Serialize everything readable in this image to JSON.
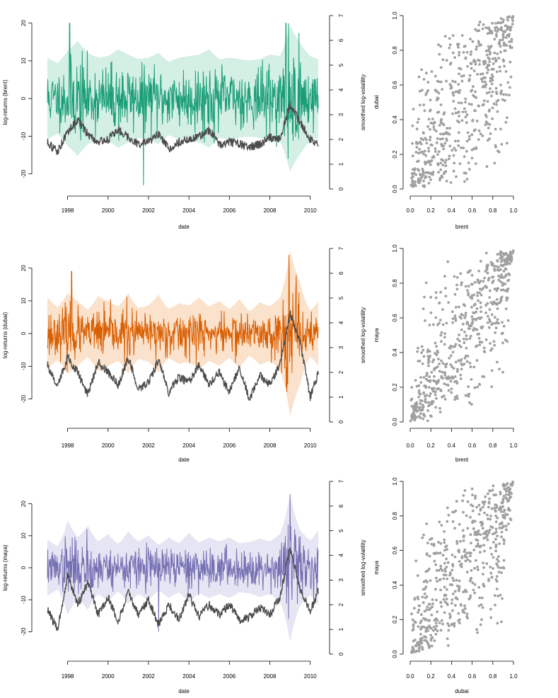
{
  "colors": {
    "brent": "#1b9e77",
    "brent_band": "#d4efe4",
    "dubai": "#d95f02",
    "dubai_band": "#fbe2cc",
    "maya": "#7570b3",
    "maya_band": "#e6e5f3",
    "volatility": "#4a4a4a",
    "scatter": "#a0a0a0"
  },
  "chart_data": [
    {
      "type": "line",
      "xlabel": "date",
      "ylabel": "log-returns (brent)",
      "y2label": "smoothed log-volatility",
      "x_ticks": [
        "1998",
        "2000",
        "2002",
        "2004",
        "2006",
        "2008",
        "2010"
      ],
      "y_ticks": [
        "-20",
        "-10",
        "0",
        "10",
        "20"
      ],
      "y2_ticks": [
        "0",
        "1",
        "2",
        "3",
        "4",
        "5",
        "6",
        "7"
      ],
      "ylim": [
        -24,
        22
      ],
      "y2lim": [
        0,
        7
      ],
      "xlim": [
        1997.0,
        2010.5
      ],
      "returns_series": {
        "name": "log-returns (brent)",
        "color_key": "brent",
        "band_key": "brent_band",
        "amplitude": 4.2,
        "seed": 11
      },
      "volatility_series": {
        "name": "smoothed log-volatility",
        "x": [
          1997.0,
          1997.5,
          1998.0,
          1998.5,
          1999.0,
          1999.5,
          2000.0,
          2000.5,
          2001.0,
          2001.5,
          2002.0,
          2002.5,
          2003.0,
          2003.5,
          2004.0,
          2004.5,
          2005.0,
          2005.5,
          2006.0,
          2006.5,
          2007.0,
          2007.5,
          2008.0,
          2008.5,
          2009.0,
          2009.5,
          2010.0,
          2010.4
        ],
        "values": [
          1.9,
          1.5,
          2.3,
          2.8,
          2.2,
          1.9,
          2.0,
          2.4,
          2.1,
          1.8,
          1.9,
          2.2,
          1.6,
          1.9,
          2.0,
          2.1,
          2.4,
          1.8,
          1.9,
          1.8,
          1.7,
          1.8,
          2.1,
          2.0,
          3.4,
          2.7,
          2.0,
          1.8
        ]
      },
      "spikes": [
        {
          "x": 1998.1,
          "y": 20
        },
        {
          "x": 2001.75,
          "y": -23
        },
        {
          "x": 2008.8,
          "y": 20
        },
        {
          "x": 2008.9,
          "y": -16
        }
      ]
    },
    {
      "type": "line",
      "xlabel": "date",
      "ylabel": "log-returns (dubai)",
      "y2label": "smoothed log-volatility",
      "x_ticks": [
        "1998",
        "2000",
        "2002",
        "2004",
        "2006",
        "2008",
        "2010"
      ],
      "y_ticks": [
        "-20",
        "-10",
        "0",
        "10",
        "20"
      ],
      "y2_ticks": [
        "0",
        "1",
        "2",
        "3",
        "4",
        "5",
        "6",
        "7"
      ],
      "ylim": [
        -27,
        26
      ],
      "y2lim": [
        0,
        7
      ],
      "xlim": [
        1997.0,
        2010.5
      ],
      "returns_series": {
        "name": "log-returns (dubai)",
        "color_key": "dubai",
        "band_key": "dubai_band",
        "amplitude": 3.6,
        "seed": 23
      },
      "volatility_series": {
        "name": "smoothed log-volatility",
        "x": [
          1997.0,
          1997.5,
          1998.0,
          1998.5,
          1999.0,
          1999.5,
          2000.0,
          2000.5,
          2001.0,
          2001.5,
          2002.0,
          2002.5,
          2003.0,
          2003.5,
          2004.0,
          2004.5,
          2005.0,
          2005.5,
          2006.0,
          2006.5,
          2007.0,
          2007.5,
          2008.0,
          2008.5,
          2009.0,
          2009.5,
          2010.0,
          2010.4
        ],
        "values": [
          2.3,
          1.4,
          2.6,
          2.0,
          1.1,
          2.4,
          2.0,
          1.5,
          2.6,
          1.3,
          1.6,
          2.5,
          1.2,
          1.8,
          1.6,
          2.3,
          1.5,
          2.0,
          1.2,
          2.2,
          0.9,
          1.9,
          1.5,
          2.3,
          4.4,
          3.2,
          1.0,
          2.0
        ]
      },
      "spikes": [
        {
          "x": 1998.2,
          "y": 19
        },
        {
          "x": 2008.95,
          "y": 24
        },
        {
          "x": 2009.1,
          "y": -12
        }
      ]
    },
    {
      "type": "line",
      "xlabel": "date",
      "ylabel": "log-returns (maya)",
      "y2label": "smoothed log-volatility",
      "x_ticks": [
        "1998",
        "2000",
        "2002",
        "2004",
        "2006",
        "2008",
        "2010"
      ],
      "y_ticks": [
        "-20",
        "-10",
        "0",
        "10",
        "20"
      ],
      "y2_ticks": [
        "0",
        "1",
        "2",
        "3",
        "4",
        "5",
        "6",
        "7"
      ],
      "ylim": [
        -27,
        27
      ],
      "y2lim": [
        0,
        7
      ],
      "xlim": [
        1997.0,
        2010.5
      ],
      "returns_series": {
        "name": "log-returns (maya)",
        "color_key": "maya",
        "band_key": "maya_band",
        "amplitude": 3.4,
        "seed": 37
      },
      "volatility_series": {
        "name": "smoothed log-volatility",
        "x": [
          1997.0,
          1997.5,
          1998.0,
          1998.5,
          1999.0,
          1999.5,
          2000.0,
          2000.5,
          2001.0,
          2001.5,
          2002.0,
          2002.5,
          2003.0,
          2003.5,
          2004.0,
          2004.5,
          2005.0,
          2005.5,
          2006.0,
          2006.5,
          2007.0,
          2007.5,
          2008.0,
          2008.5,
          2009.0,
          2009.5,
          2010.0,
          2010.4
        ],
        "values": [
          1.8,
          1.0,
          3.2,
          2.0,
          2.9,
          1.6,
          2.3,
          1.3,
          2.5,
          1.6,
          2.2,
          1.2,
          2.0,
          1.4,
          2.4,
          1.5,
          2.0,
          1.6,
          2.0,
          1.4,
          1.5,
          1.9,
          1.6,
          2.3,
          4.3,
          2.6,
          1.7,
          2.6
        ]
      },
      "spikes": [
        {
          "x": 1998.95,
          "y": 12
        },
        {
          "x": 2009.0,
          "y": 23
        },
        {
          "x": 2002.5,
          "y": -20
        }
      ]
    }
  ],
  "scatter_data": [
    {
      "type": "scatter",
      "xlabel": "brent",
      "ylabel": "dubai",
      "xlim": [
        0,
        1
      ],
      "ylim": [
        0,
        1
      ],
      "x_ticks": [
        "0.0",
        "0.2",
        "0.4",
        "0.6",
        "0.8",
        "1.0"
      ],
      "y_ticks": [
        "0.0",
        "0.2",
        "0.4",
        "0.6",
        "0.8",
        "1.0"
      ],
      "n_points": 560,
      "correlation": 0.72,
      "seed": 101
    },
    {
      "type": "scatter",
      "xlabel": "brent",
      "ylabel": "maya",
      "xlim": [
        0,
        1
      ],
      "ylim": [
        0,
        1
      ],
      "x_ticks": [
        "0.0",
        "0.2",
        "0.4",
        "0.6",
        "0.8",
        "1.0"
      ],
      "y_ticks": [
        "0.0",
        "0.2",
        "0.4",
        "0.6",
        "0.8",
        "1.0"
      ],
      "n_points": 560,
      "correlation": 0.8,
      "seed": 202
    },
    {
      "type": "scatter",
      "xlabel": "dubai",
      "ylabel": "maya",
      "xlim": [
        0,
        1
      ],
      "ylim": [
        0,
        1
      ],
      "x_ticks": [
        "0.0",
        "0.2",
        "0.4",
        "0.6",
        "0.8",
        "1.0"
      ],
      "y_ticks": [
        "0.0",
        "0.2",
        "0.4",
        "0.6",
        "0.8",
        "1.0"
      ],
      "n_points": 560,
      "correlation": 0.78,
      "seed": 303
    }
  ]
}
